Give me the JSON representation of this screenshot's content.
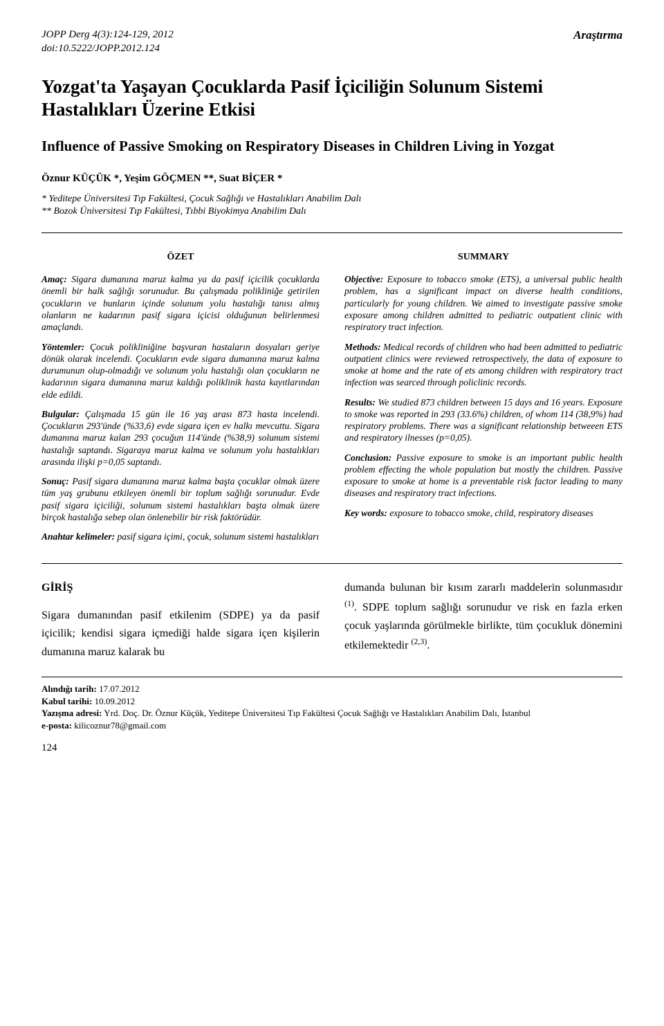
{
  "header": {
    "journal_line": "JOPP Derg 4(3):124-129, 2012",
    "doi_line": "doi:10.5222/JOPP.2012.124",
    "article_type": "Araştırma"
  },
  "title_tr": "Yozgat'ta Yaşayan Çocuklarda Pasif İçiciliğin Solunum Sistemi Hastalıkları Üzerine Etkisi",
  "title_en": "Influence of Passive Smoking on Respiratory Diseases in Children Living in Yozgat",
  "authors": "Öznur KÜÇÜK *, Yeşim GÖÇMEN **, Suat BİÇER *",
  "affiliations": [
    "* Yeditepe Üniversitesi Tıp Fakültesi, Çocuk Sağlığı ve Hastalıkları Anabilim Dalı",
    "** Bozok Üniversitesi Tıp Fakültesi, Tıbbi Biyokimya Anabilim Dalı"
  ],
  "ozet": {
    "heading": "ÖZET",
    "amac_label": "Amaç:",
    "amac": " Sigara dumanına maruz kalma ya da pasif içicilik çocuklarda önemli bir halk sağlığı sorunudur. Bu çalışmada polikliniğe getirilen çocukların ve bunların içinde solunum yolu hastalığı tanısı almış olanların ne kadarının pasif sigara içicisi olduğunun belirlenmesi amaçlandı.",
    "yontemler_label": "Yöntemler:",
    "yontemler": " Çocuk polikliniğine başvuran hastaların dosyaları geriye dönük olarak incelendi. Çocukların evde sigara dumanına maruz kalma durumunun olup-olmadığı ve solunum yolu hastalığı olan çocukların ne kadarının sigara dumanına maruz kaldığı poliklinik hasta kayıtlarından elde edildi.",
    "bulgular_label": "Bulgular:",
    "bulgular": " Çalışmada 15 gün ile 16 yaş arası 873 hasta incelendi. Çocukların 293'ünde (%33,6) evde sigara içen ev halkı mevcuttu. Sigara dumanına maruz kalan 293 çocuğun 114'ünde (%38,9) solunum sistemi hastalığı saptandı. Sigaraya maruz kalma ve solunum yolu hastalıkları arasında ilişki p=0,05 saptandı.",
    "sonuc_label": "Sonuç:",
    "sonuc": " Pasif sigara dumanına maruz kalma başta çocuklar olmak üzere tüm yaş grubunu etkileyen önemli bir toplum sağlığı sorunudur. Evde pasif sigara içiciliği, solunum sistemi hastalıkları başta olmak üzere birçok hastalığa sebep olan önlenebilir bir risk faktörüdür.",
    "anahtar_label": "Anahtar kelimeler:",
    "anahtar": " pasif sigara içimi, çocuk, solunum sistemi hastalıkları"
  },
  "summary": {
    "heading": "SUMMARY",
    "objective_label": "Objective:",
    "objective": " Exposure to tobacco smoke (ETS), a universal public health problem, has a significant impact on diverse health conditions, particularly for young children. We aimed to investigate passive smoke exposure among children admitted to pediatric outpatient clinic with respiratory tract infection.",
    "methods_label": "Methods:",
    "methods": " Medical records of children who had been admitted to pediatric outpatient clinics were reviewed retrospectively, the data of exposure to smoke at home and the rate of ets among children with respiratory tract infection was searced through policlinic records.",
    "results_label": "Results:",
    "results": " We studied 873 children between 15 days and 16 years. Exposure to smoke was reported in 293 (33.6%) children, of whom 114 (38,9%) had respiratory problems. There was a significant relationship betweeen ETS and respiratory ilnesses (p=0,05).",
    "conclusion_label": "Conclusion:",
    "conclusion": " Passive exposure to smoke is an important public health problem effecting the whole population but mostly the children. Passive exposure to smoke at home is a preventable risk factor leading to many diseases and respiratory tract infections.",
    "keywords_label": "Key words:",
    "keywords": " exposure to tobacco smoke, child, respiratory diseases"
  },
  "body": {
    "giris_heading": "GİRİŞ",
    "left_para": "Sigara dumanından pasif etkilenim (SDPE) ya da pasif içicilik; kendisi sigara içmediği halde sigara içen kişilerin dumanına maruz kalarak bu",
    "right_para_1": "dumanda bulunan bir kısım zararlı maddelerin solunmasıdır ",
    "right_cite_1": "(1)",
    "right_para_2": ". SDPE toplum sağlığı sorunudur ve risk en fazla erken çocuk yaşlarında görülmekle birlikte, tüm çocukluk dönemini etkilemektedir ",
    "right_cite_2": "(2,3)",
    "right_para_3": "."
  },
  "footer": {
    "received_label": "Alındığı tarih:",
    "received": " 17.07.2012",
    "accepted_label": "Kabul tarihi:",
    "accepted": " 10.09.2012",
    "corr_label": "Yazışma adresi:",
    "corr": " Yrd. Doç. Dr. Öznur Küçük, Yeditepe Üniversitesi Tıp Fakültesi Çocuk Sağlığı ve Hastalıkları Anabilim Dalı, İstanbul",
    "email_label": "e-posta:",
    "email": " kilicoznur78@gmail.com"
  },
  "page_number": "124",
  "colors": {
    "text": "#000000",
    "background": "#ffffff",
    "rule": "#000000"
  },
  "typography": {
    "body_family": "Georgia, 'Times New Roman', serif",
    "title_size_pt": 20,
    "subtitle_size_pt": 16,
    "abstract_size_pt": 10,
    "body_size_pt": 12
  }
}
